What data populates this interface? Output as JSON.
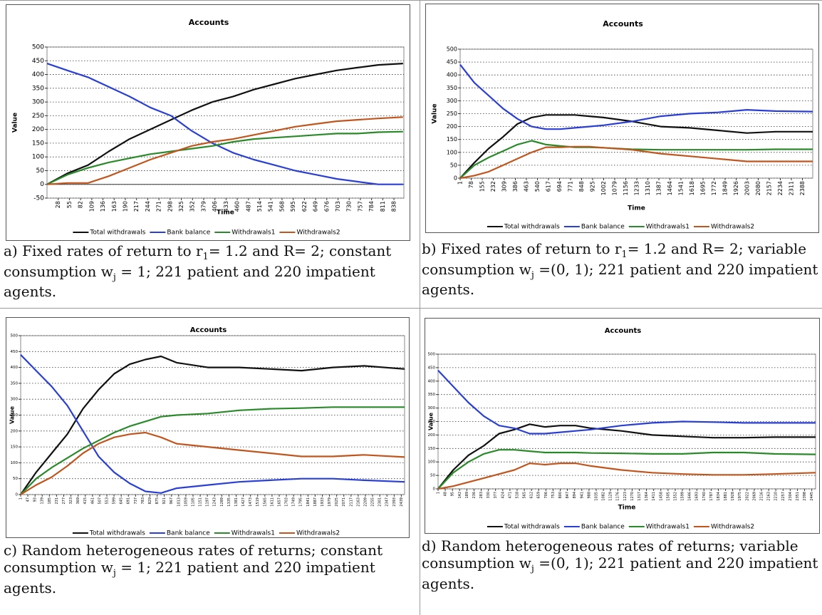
{
  "chart_data": [
    {
      "type": "line",
      "title": "Accounts",
      "x_label": "Time",
      "y_label": "Value",
      "x": [
        1,
        50,
        100,
        150,
        200,
        250,
        300,
        350,
        400,
        450,
        500,
        550,
        600,
        650,
        700,
        750,
        800,
        860
      ],
      "xlim": [
        1,
        862
      ],
      "xticks": [
        28,
        55,
        82,
        109,
        136,
        163,
        190,
        217,
        244,
        271,
        298,
        325,
        352,
        379,
        406,
        433,
        460,
        487,
        514,
        541,
        568,
        595,
        622,
        649,
        676,
        703,
        730,
        757,
        784,
        811,
        838
      ],
      "ylim": [
        -50,
        500
      ],
      "yticks": [
        -50,
        0,
        50,
        100,
        150,
        200,
        250,
        300,
        350,
        400,
        450,
        500
      ],
      "grid": true,
      "legend": "bottom",
      "series": [
        {
          "name": "Total withdrawals",
          "color": "#111111",
          "values": [
            0,
            40,
            70,
            120,
            165,
            200,
            235,
            270,
            300,
            320,
            345,
            365,
            385,
            400,
            415,
            425,
            435,
            440
          ]
        },
        {
          "name": "Bank balance",
          "color": "#2a3fd4",
          "values": [
            440,
            415,
            390,
            355,
            320,
            280,
            250,
            195,
            150,
            115,
            90,
            70,
            50,
            35,
            20,
            10,
            0,
            0
          ]
        },
        {
          "name": "Withdrawals1",
          "color": "#2a8a2a",
          "values": [
            0,
            35,
            60,
            80,
            95,
            110,
            120,
            130,
            140,
            155,
            165,
            170,
            175,
            180,
            185,
            185,
            190,
            192
          ]
        },
        {
          "name": "Withdrawals2",
          "color": "#c0561e",
          "values": [
            0,
            5,
            5,
            30,
            60,
            90,
            115,
            140,
            155,
            165,
            180,
            195,
            210,
            220,
            230,
            235,
            240,
            245
          ]
        }
      ]
    },
    {
      "type": "line",
      "title": "Accounts",
      "x_label": "Time",
      "y_label": "Value",
      "x": [
        1,
        100,
        200,
        300,
        400,
        500,
        600,
        700,
        800,
        900,
        1000,
        1200,
        1400,
        1600,
        1800,
        2000,
        2200,
        2460
      ],
      "xlim": [
        1,
        2460
      ],
      "xticks": [
        1,
        78,
        155,
        232,
        309,
        386,
        463,
        540,
        617,
        694,
        771,
        848,
        925,
        1002,
        1079,
        1156,
        1233,
        1310,
        1387,
        1464,
        1541,
        1618,
        1695,
        1772,
        1849,
        1926,
        2003,
        2080,
        2157,
        2234,
        2311,
        2388
      ],
      "ylim": [
        0,
        500
      ],
      "yticks": [
        0,
        50,
        100,
        150,
        200,
        250,
        300,
        350,
        400,
        450,
        500
      ],
      "grid": true,
      "legend": "bottom",
      "series": [
        {
          "name": "Total withdrawals",
          "color": "#111111",
          "values": [
            0,
            60,
            115,
            160,
            210,
            235,
            245,
            245,
            245,
            240,
            235,
            220,
            200,
            195,
            185,
            175,
            180,
            180
          ]
        },
        {
          "name": "Bank balance",
          "color": "#2a3fd4",
          "values": [
            440,
            370,
            320,
            270,
            230,
            200,
            190,
            190,
            195,
            200,
            205,
            220,
            240,
            250,
            255,
            265,
            260,
            258
          ]
        },
        {
          "name": "Withdrawals1",
          "color": "#2a8a2a",
          "values": [
            0,
            50,
            80,
            105,
            130,
            145,
            130,
            125,
            120,
            120,
            118,
            112,
            110,
            110,
            110,
            110,
            112,
            112
          ]
        },
        {
          "name": "Withdrawals2",
          "color": "#c0561e",
          "values": [
            0,
            10,
            25,
            50,
            75,
            100,
            120,
            120,
            122,
            122,
            118,
            110,
            95,
            85,
            75,
            65,
            65,
            65
          ]
        }
      ]
    },
    {
      "type": "line",
      "title": "Accounts",
      "y_label": "Value",
      "x": [
        1,
        100,
        200,
        300,
        400,
        500,
        600,
        700,
        800,
        900,
        1000,
        1200,
        1400,
        1600,
        1800,
        2000,
        2200,
        2460
      ],
      "xlim": [
        1,
        2460
      ],
      "xticks": [
        1,
        47,
        93,
        139,
        185,
        231,
        277,
        323,
        369,
        415,
        461,
        507,
        553,
        599,
        645,
        691,
        737,
        783,
        829,
        875,
        921,
        967,
        1013,
        1059,
        1105,
        1151,
        1197,
        1243,
        1289,
        1335,
        1381,
        1427,
        1473,
        1519,
        1565,
        1611,
        1657,
        1703,
        1749,
        1795,
        1841,
        1887,
        1933,
        1979,
        2025,
        2071,
        2117,
        2163,
        2209,
        2255,
        2301,
        2347,
        2393,
        2439
      ],
      "ylim": [
        0,
        500
      ],
      "yticks": [
        0,
        50,
        100,
        150,
        200,
        250,
        300,
        350,
        400,
        450,
        500
      ],
      "grid": true,
      "legend": "bottom",
      "series": [
        {
          "name": "Total withdrawals",
          "color": "#111111",
          "values": [
            0,
            70,
            130,
            190,
            270,
            330,
            380,
            410,
            425,
            435,
            415,
            400,
            400,
            395,
            390,
            400,
            405,
            395
          ]
        },
        {
          "name": "Bank balance",
          "color": "#2a3fd4",
          "values": [
            440,
            390,
            340,
            280,
            200,
            120,
            70,
            35,
            10,
            5,
            20,
            30,
            40,
            45,
            50,
            50,
            45,
            40
          ]
        },
        {
          "name": "Withdrawals1",
          "color": "#2a8a2a",
          "values": [
            0,
            50,
            85,
            115,
            145,
            170,
            195,
            215,
            230,
            245,
            250,
            255,
            265,
            270,
            272,
            275,
            275,
            275
          ]
        },
        {
          "name": "Withdrawals2",
          "color": "#c0561e",
          "values": [
            0,
            30,
            55,
            90,
            130,
            160,
            180,
            190,
            195,
            180,
            160,
            150,
            140,
            130,
            120,
            120,
            125,
            118
          ]
        }
      ]
    },
    {
      "type": "line",
      "title": "Accounts",
      "x_label": "Time",
      "y_label": "Value",
      "x": [
        1,
        100,
        200,
        300,
        400,
        500,
        600,
        700,
        800,
        900,
        1000,
        1200,
        1400,
        1600,
        1800,
        2000,
        2200,
        2470
      ],
      "xlim": [
        1,
        2470
      ],
      "xticks": [
        1,
        48,
        95,
        142,
        189,
        236,
        283,
        330,
        377,
        424,
        471,
        518,
        565,
        612,
        659,
        706,
        753,
        800,
        847,
        894,
        941,
        988,
        1035,
        1082,
        1129,
        1176,
        1223,
        1270,
        1317,
        1364,
        1411,
        1458,
        1505,
        1552,
        1599,
        1646,
        1693,
        1740,
        1787,
        1834,
        1881,
        1928,
        1975,
        2022,
        2069,
        2116,
        2163,
        2210,
        2257,
        2304,
        2351,
        2398,
        2445
      ],
      "ylim": [
        0,
        500
      ],
      "yticks": [
        0,
        50,
        100,
        150,
        200,
        250,
        300,
        350,
        400,
        450,
        500
      ],
      "grid": true,
      "legend": "bottom",
      "series": [
        {
          "name": "Total withdrawals",
          "color": "#111111",
          "values": [
            0,
            70,
            125,
            160,
            205,
            220,
            240,
            230,
            235,
            235,
            225,
            215,
            200,
            195,
            190,
            190,
            192,
            192
          ]
        },
        {
          "name": "Bank balance",
          "color": "#2a3fd4",
          "values": [
            440,
            380,
            320,
            270,
            235,
            225,
            205,
            205,
            210,
            215,
            220,
            235,
            245,
            250,
            248,
            245,
            245,
            245
          ]
        },
        {
          "name": "Withdrawals1",
          "color": "#2a8a2a",
          "values": [
            0,
            60,
            100,
            130,
            145,
            145,
            140,
            135,
            135,
            135,
            133,
            132,
            130,
            130,
            135,
            135,
            130,
            128
          ]
        },
        {
          "name": "Withdrawals2",
          "color": "#c0561e",
          "values": [
            0,
            10,
            25,
            40,
            55,
            70,
            95,
            90,
            95,
            95,
            85,
            70,
            60,
            55,
            52,
            52,
            55,
            60
          ]
        }
      ]
    }
  ],
  "captions": [
    [
      "a) Fixed rates of return to r",
      "1",
      "= 1.2 and R= 2; constant consumption w",
      "j",
      " = 1; 221 patient and 220 impatient agents."
    ],
    [
      "b) Fixed rates of return to r",
      "1",
      "= 1.2 and R= 2; variable consumption w",
      "j",
      " =(0, 1); 221 patient and 220 impatient agents."
    ],
    [
      "c) Random heterogeneous rates of returns; constant consumption w",
      "j",
      " = 1; 221 patient and 220 impatient agents."
    ],
    [
      "d) Random heterogeneous rates of returns; variable consumption w",
      "j",
      " =(0, 1); 221 patient and 220 impatient agents."
    ]
  ]
}
